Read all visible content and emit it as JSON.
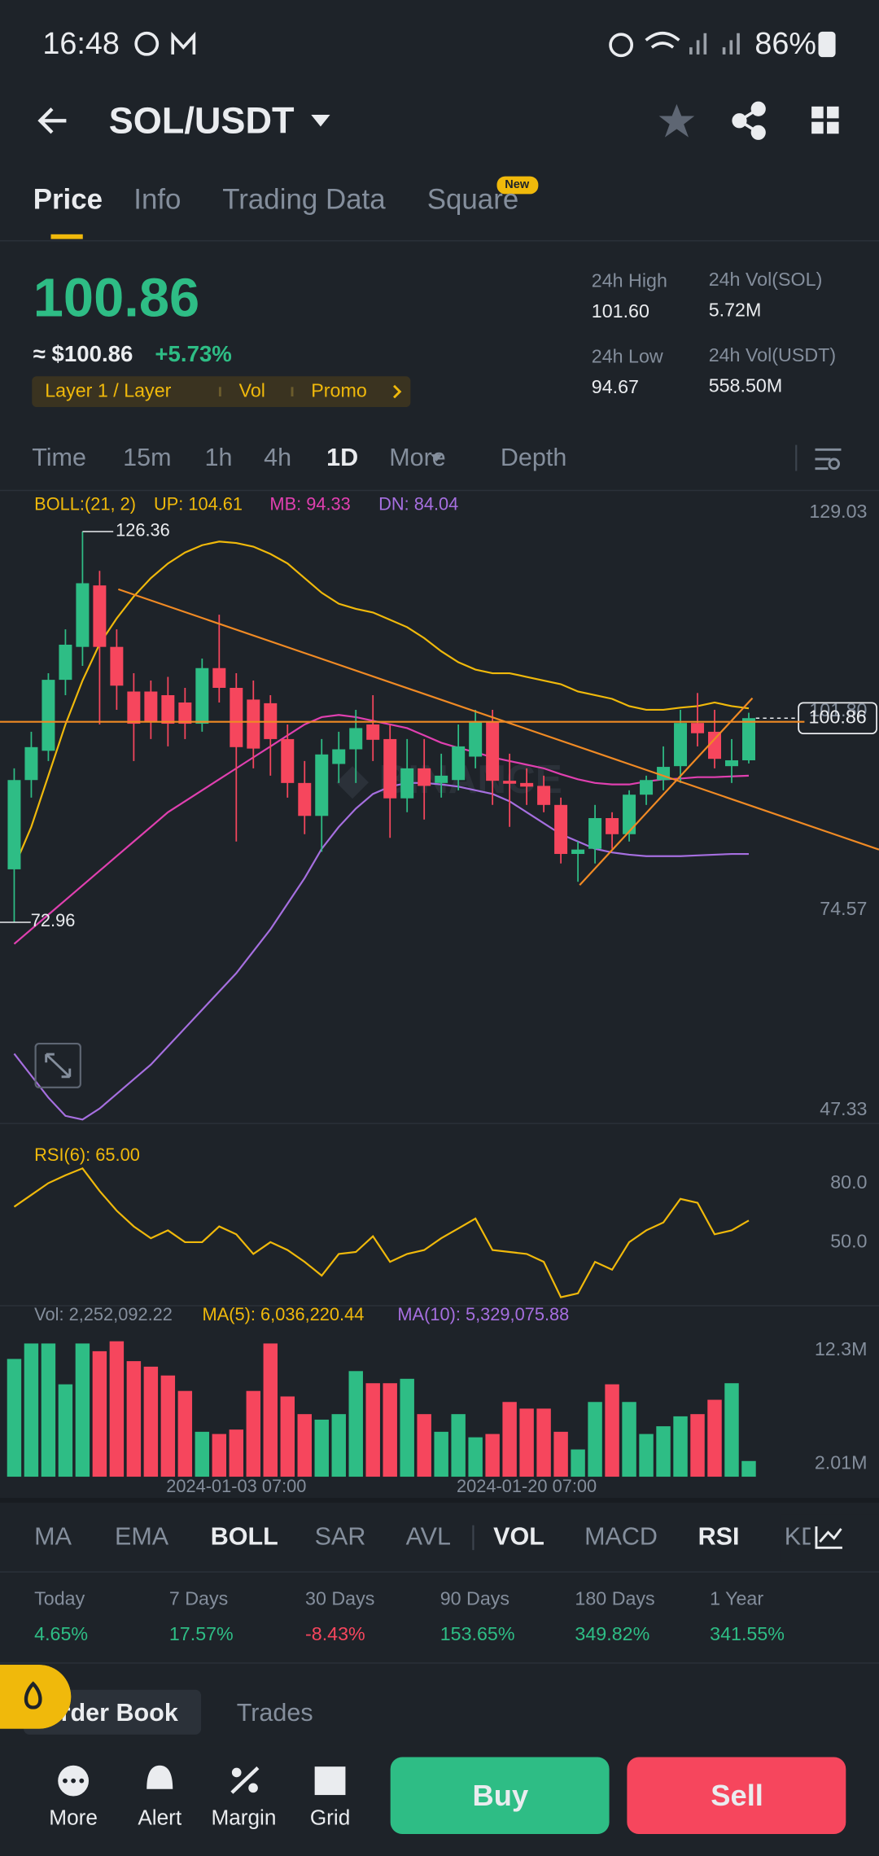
{
  "status": {
    "time": "16:48",
    "battery": "86%"
  },
  "header": {
    "pair": "SOL/USDT"
  },
  "tabs": {
    "items": [
      "Price",
      "Info",
      "Trading Data",
      "Square"
    ],
    "badge": "New"
  },
  "ticker": {
    "price": "100.86",
    "usd": "≈ $100.86",
    "change": "+5.73%",
    "tags": [
      "Layer 1 / Layer",
      "Vol",
      "Promo"
    ]
  },
  "stats": [
    {
      "label": "24h High",
      "value": "101.60"
    },
    {
      "label": "24h Vol(SOL)",
      "value": "5.72M"
    },
    {
      "label": "24h Low",
      "value": "94.67"
    },
    {
      "label": "24h Vol(USDT)",
      "value": "558.50M"
    }
  ],
  "intervals": [
    "Time",
    "15m",
    "1h",
    "4h",
    "1D",
    "More",
    "Depth"
  ],
  "chart_data": [
    {
      "type": "candlestick",
      "legend": [
        "BOLL:(21, 2)",
        "UP: 104.61",
        "MB: 94.33",
        "DN: 84.04"
      ],
      "open": [
        80.2,
        92.4,
        96.4,
        106.1,
        110.6,
        119,
        110.6,
        104.5,
        104.5,
        104,
        103,
        100.1,
        107.7,
        105,
        103.4,
        102.9,
        98,
        92,
        87.5,
        94.6,
        96.6,
        100,
        98,
        89.9,
        94,
        92,
        92.4,
        95.6,
        100.4,
        92.3,
        92,
        91.6,
        89,
        82.3,
        83,
        87.2,
        85,
        90.4,
        92.4,
        94.3,
        100.2,
        99,
        94.3,
        95.1
      ],
      "high": [
        94,
        99,
        107,
        113,
        126.36,
        121,
        113,
        107,
        106,
        106.5,
        105,
        109,
        115,
        107,
        106,
        104,
        100,
        95,
        98,
        99,
        102,
        104,
        100,
        98,
        98,
        96,
        100,
        102,
        102,
        96,
        94,
        93,
        90,
        84,
        89,
        88,
        91,
        93,
        97,
        102,
        104.3,
        102,
        98,
        101.6
      ],
      "low": [
        72.96,
        90,
        95,
        104,
        108,
        100,
        102,
        95,
        98,
        97,
        98,
        99,
        103,
        84,
        94,
        93,
        90,
        85,
        82.6,
        92,
        92,
        95,
        84.5,
        88,
        87,
        90,
        91,
        94,
        89,
        86,
        89,
        88,
        81,
        78.5,
        81,
        83,
        84,
        89,
        91,
        92,
        97,
        94,
        92,
        94.67
      ],
      "close": [
        92.4,
        96.9,
        106.1,
        110.9,
        119.3,
        110.6,
        105.3,
        100.1,
        100.3,
        100.1,
        100.1,
        107.7,
        105,
        96.9,
        96.7,
        98,
        92,
        87.5,
        95.9,
        96.6,
        99.5,
        97.9,
        89.9,
        94,
        91.6,
        93,
        97,
        100.4,
        92.3,
        91.9,
        91.5,
        89,
        82.3,
        82.9,
        87.2,
        85,
        90.4,
        92.4,
        94.2,
        100.2,
        98.8,
        95.3,
        95.1,
        100.86
      ],
      "up_color": "#2ebd85",
      "down_color": "#f6465d",
      "series": [
        {
          "color": "#f0b90b",
          "values": [
            80.5,
            86,
            93,
            100,
            106,
            111,
            114.5,
            117.5,
            120,
            122,
            123.5,
            124.5,
            125,
            124.8,
            124.3,
            123.3,
            122,
            120,
            118,
            116.5,
            115.8,
            115.3,
            114.3,
            113.3,
            111.8,
            110,
            108.5,
            107.5,
            107,
            107,
            106.5,
            106,
            105.5,
            104.5,
            104,
            103.5,
            102.5,
            102,
            102,
            102.3,
            102.5,
            103,
            102.5,
            102.2
          ]
        },
        {
          "color": "#e040b0",
          "values": [
            70,
            72,
            74,
            76,
            78,
            80,
            82,
            84,
            86,
            88,
            89.5,
            91,
            92.5,
            94,
            95.5,
            97,
            98.5,
            100,
            101,
            101.3,
            101,
            100.5,
            100,
            99.5,
            98.5,
            97.5,
            96.8,
            96.2,
            95.5,
            95,
            94.5,
            94,
            93.2,
            92.5,
            92,
            91.8,
            91.8,
            92.2,
            92.5,
            92.6,
            92.8,
            92.8,
            92.9,
            93.0
          ]
        },
        {
          "color": "#a66fe0",
          "values": [
            55,
            52,
            49,
            46.5,
            46,
            47.5,
            49.5,
            51.5,
            53.5,
            56,
            58.5,
            61,
            63.5,
            66,
            69,
            72,
            75.5,
            79,
            83,
            86,
            88.5,
            90.5,
            91.5,
            92,
            92,
            91.8,
            91.5,
            91,
            90.5,
            89.5,
            88,
            86.5,
            85,
            84,
            83,
            82.5,
            82.2,
            82,
            82,
            82,
            82.1,
            82.2,
            82.3,
            82.3
          ]
        }
      ],
      "ylim": [
        45.7,
        131.9
      ],
      "yticks": [
        47.33,
        74.57,
        {
          "value": 101.8,
          "label": "101.80"
        },
        129.03
      ]
    },
    {
      "type": "line",
      "label": "RSI(6): 65.00",
      "color": "#f0b90b",
      "values": [
        68,
        74,
        80,
        84,
        87.5,
        76,
        66,
        58,
        52,
        56,
        50,
        50,
        58,
        54,
        44,
        50,
        46,
        40,
        33,
        44,
        45,
        53,
        40,
        44,
        46,
        52,
        57,
        62,
        46,
        45,
        44,
        40,
        22,
        24,
        40,
        36,
        50,
        56,
        60,
        72,
        70,
        54,
        56,
        61
      ],
      "ylim": [
        18,
        110
      ],
      "yticks": [
        {
          "value": 80,
          "label": "80.0"
        },
        {
          "value": 50,
          "label": "50.0"
        }
      ]
    },
    {
      "type": "bar",
      "legend": [
        "Vol: 2,252,092.22",
        "MA(5): 6,036,220.44",
        "MA(10): 5,329,075.88"
      ],
      "legend_colors": [
        "#848e9c",
        "#f0b90b",
        "#a66fe0"
      ],
      "categories": [
        null,
        null,
        null,
        null,
        null,
        null,
        null,
        null,
        null,
        null,
        null,
        null,
        null,
        "2024-01-03 07:00",
        null,
        null,
        null,
        null,
        null,
        null,
        null,
        null,
        null,
        null,
        null,
        null,
        null,
        null,
        null,
        null,
        "2024-01-20 07:00",
        null,
        null,
        null,
        null,
        null,
        null,
        null,
        null,
        null,
        null,
        null,
        null,
        null
      ],
      "values": [
        11500000,
        12900000,
        12900000,
        9200000,
        12900000,
        12200000,
        13100000,
        11300000,
        10800000,
        10000000,
        8600000,
        4900000,
        4700000,
        5100000,
        8600000,
        12900000,
        8100000,
        6500000,
        6000000,
        6500000,
        10400000,
        9300000,
        9300000,
        9700000,
        6500000,
        4900000,
        6500000,
        4400000,
        4700000,
        7600000,
        7000000,
        7000000,
        4900000,
        3300000,
        7600000,
        9200000,
        7600000,
        4700000,
        5400000,
        6300000,
        6500000,
        7800000,
        9300000,
        2252092.22
      ],
      "ylim": [
        830000,
        16160000
      ],
      "yticks": [
        {
          "value": 12300000,
          "label": "12.3M"
        },
        {
          "value": 2010000,
          "label": "2.01M"
        }
      ]
    }
  ],
  "indicators": [
    "MA",
    "EMA",
    "BOLL",
    "SAR",
    "AVL",
    "VOL",
    "MACD",
    "RSI",
    "KDJ"
  ],
  "performance": [
    {
      "label": "Today",
      "value": "4.65%"
    },
    {
      "label": "7 Days",
      "value": "17.57%"
    },
    {
      "label": "30 Days",
      "value": "-8.43%"
    },
    {
      "label": "90 Days",
      "value": "153.65%"
    },
    {
      "label": "180 Days",
      "value": "349.82%"
    },
    {
      "label": "1 Year",
      "value": "341.55%"
    }
  ],
  "book_tabs": [
    "Order Book",
    "Trades"
  ],
  "actions": [
    "More",
    "Alert",
    "Margin",
    "Grid"
  ],
  "buy": "Buy",
  "sell": "Sell"
}
